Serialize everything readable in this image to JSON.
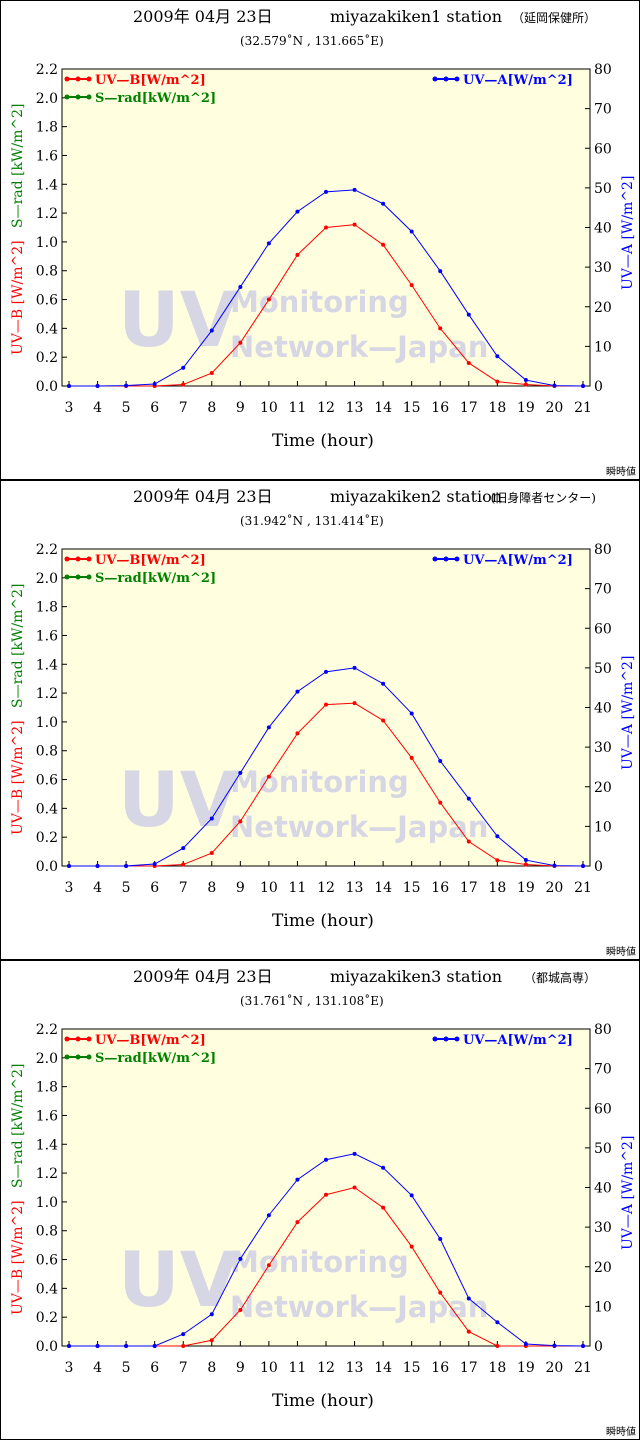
{
  "colors": {
    "uvb": "#ff0000",
    "srad": "#008000",
    "uva": "#0000ff",
    "plot_bg": "#ffffe0",
    "watermark": "#d6d6e4"
  },
  "watermark": {
    "big": "UV",
    "line1": "Monitoring",
    "line2": "Network—Japan"
  },
  "chart_data": [
    {
      "type": "line",
      "date": "2009年 04月 23日",
      "title": "miyazakiken1 station",
      "location_label": "（延岡保健所）",
      "coordinates": "(32.579˚N , 131.665˚E)",
      "note": "瞬時値",
      "xlabel": "Time (hour)",
      "ylabel_left_uvb": "UV—B [W/m^2]",
      "ylabel_left_srad": "S—rad [kW/m^2]",
      "ylabel_right": "UV—A [W/m^2]",
      "x": [
        3,
        4,
        5,
        6,
        7,
        8,
        9,
        10,
        11,
        12,
        13,
        14,
        15,
        16,
        17,
        18,
        19,
        20,
        21
      ],
      "xlim": [
        3,
        21
      ],
      "ylim_left": [
        0,
        2.2
      ],
      "ylim_right": [
        0,
        80
      ],
      "yticks_left": [
        "0.0",
        "0.2",
        "0.4",
        "0.6",
        "0.8",
        "1.0",
        "1.2",
        "1.4",
        "1.6",
        "1.8",
        "2.0",
        "2.2"
      ],
      "yticks_right": [
        "0",
        "10",
        "20",
        "30",
        "40",
        "50",
        "60",
        "70",
        "80"
      ],
      "grid": false,
      "legend_left": [
        "UV—B[W/m^2]",
        "S—rad[kW/m^2]"
      ],
      "legend_right": [
        "UV—A[W/m^2]"
      ],
      "series": [
        {
          "name": "UV—B[W/m^2]",
          "axis": "left",
          "color_key": "uvb",
          "x": [
            3,
            4,
            5,
            6,
            7,
            8,
            9,
            10,
            11,
            12,
            13,
            14,
            15,
            16,
            17,
            18,
            19,
            20,
            21
          ],
          "values": [
            0,
            0,
            0,
            0,
            0.01,
            0.09,
            0.3,
            0.6,
            0.91,
            1.1,
            1.12,
            0.98,
            0.7,
            0.4,
            0.16,
            0.03,
            0.01,
            0,
            0
          ]
        },
        {
          "name": "UV—A[W/m^2]",
          "axis": "right",
          "color_key": "uva",
          "x": [
            3,
            4,
            5,
            6,
            7,
            8,
            9,
            10,
            11,
            12,
            13,
            14,
            15,
            16,
            17,
            18,
            19,
            20,
            21
          ],
          "values": [
            0,
            0,
            0.1,
            0.5,
            4.6,
            14,
            25,
            36,
            44,
            49,
            49.5,
            46,
            39,
            29,
            18,
            7.5,
            1.5,
            0.1,
            0
          ]
        }
      ]
    },
    {
      "type": "line",
      "date": "2009年 04月 23日",
      "title": "miyazakiken2 station",
      "location_label": "(旧身障者センター)",
      "coordinates": "(31.942˚N , 131.414˚E)",
      "note": "瞬時値",
      "xlabel": "Time (hour)",
      "ylabel_left_uvb": "UV—B [W/m^2]",
      "ylabel_left_srad": "S—rad [kW/m^2]",
      "ylabel_right": "UV—A [W/m^2]",
      "x": [
        3,
        4,
        5,
        6,
        7,
        8,
        9,
        10,
        11,
        12,
        13,
        14,
        15,
        16,
        17,
        18,
        19,
        20,
        21
      ],
      "xlim": [
        3,
        21
      ],
      "ylim_left": [
        0,
        2.2
      ],
      "ylim_right": [
        0,
        80
      ],
      "yticks_left": [
        "0.0",
        "0.2",
        "0.4",
        "0.6",
        "0.8",
        "1.0",
        "1.2",
        "1.4",
        "1.6",
        "1.8",
        "2.0",
        "2.2"
      ],
      "yticks_right": [
        "0",
        "10",
        "20",
        "30",
        "40",
        "50",
        "60",
        "70",
        "80"
      ],
      "grid": false,
      "legend_left": [
        "UV—B[W/m^2]",
        "S—rad[kW/m^2]"
      ],
      "legend_right": [
        "UV—A[W/m^2]"
      ],
      "series": [
        {
          "name": "UV—B[W/m^2]",
          "axis": "left",
          "color_key": "uvb",
          "x": [
            3,
            4,
            5,
            6,
            7,
            8,
            9,
            10,
            11,
            12,
            13,
            14,
            15,
            16,
            17,
            18,
            19,
            20,
            21
          ],
          "values": [
            0,
            0,
            0,
            0,
            0.01,
            0.09,
            0.31,
            0.62,
            0.92,
            1.12,
            1.13,
            1.01,
            0.75,
            0.44,
            0.17,
            0.04,
            0.01,
            0,
            0
          ]
        },
        {
          "name": "UV—A[W/m^2]",
          "axis": "right",
          "color_key": "uva",
          "x": [
            3,
            4,
            5,
            6,
            7,
            8,
            9,
            10,
            11,
            12,
            13,
            14,
            15,
            16,
            17,
            18,
            19,
            20,
            21
          ],
          "values": [
            0,
            0,
            0,
            0.5,
            4.5,
            12,
            23.5,
            35,
            44,
            49,
            50,
            46,
            38.5,
            26.5,
            17,
            7.5,
            1.5,
            0.1,
            0
          ]
        }
      ]
    },
    {
      "type": "line",
      "date": "2009年 04月 23日",
      "title": "miyazakiken3 station",
      "location_label": "（都城高専）",
      "coordinates": "(31.761˚N , 131.108˚E)",
      "note": "瞬時値",
      "xlabel": "Time (hour)",
      "ylabel_left_uvb": "UV—B [W/m^2]",
      "ylabel_left_srad": "S—rad [kW/m^2]",
      "ylabel_right": "UV—A [W/m^2]",
      "x": [
        3,
        4,
        5,
        6,
        7,
        8,
        9,
        10,
        11,
        12,
        13,
        14,
        15,
        16,
        17,
        18,
        19,
        20,
        21
      ],
      "xlim": [
        3,
        21
      ],
      "ylim_left": [
        0,
        2.2
      ],
      "ylim_right": [
        0,
        80
      ],
      "yticks_left": [
        "0.0",
        "0.2",
        "0.4",
        "0.6",
        "0.8",
        "1.0",
        "1.2",
        "1.4",
        "1.6",
        "1.8",
        "2.0",
        "2.2"
      ],
      "yticks_right": [
        "0",
        "10",
        "20",
        "30",
        "40",
        "50",
        "60",
        "70",
        "80"
      ],
      "grid": false,
      "legend_left": [
        "UV—B[W/m^2]",
        "S—rad[kW/m^2]"
      ],
      "legend_right": [
        "UV—A[W/m^2]"
      ],
      "series": [
        {
          "name": "UV—B[W/m^2]",
          "axis": "left",
          "color_key": "uvb",
          "x": [
            3,
            4,
            5,
            6,
            7,
            8,
            9,
            10,
            11,
            12,
            13,
            14,
            15,
            16,
            17,
            18,
            19,
            20,
            21
          ],
          "values": [
            0,
            0,
            0,
            0,
            0,
            0.04,
            0.25,
            0.56,
            0.86,
            1.05,
            1.1,
            0.96,
            0.69,
            0.37,
            0.1,
            0,
            0,
            0,
            0
          ]
        },
        {
          "name": "UV—A[W/m^2]",
          "axis": "right",
          "color_key": "uva",
          "x": [
            3,
            4,
            5,
            6,
            7,
            8,
            9,
            10,
            11,
            12,
            13,
            14,
            15,
            16,
            17,
            18,
            19,
            20,
            21
          ],
          "values": [
            0,
            0,
            0,
            0,
            3,
            8,
            22,
            33,
            42,
            47,
            48.5,
            45,
            38,
            27,
            12,
            6,
            0.5,
            0.1,
            0
          ]
        }
      ]
    }
  ]
}
